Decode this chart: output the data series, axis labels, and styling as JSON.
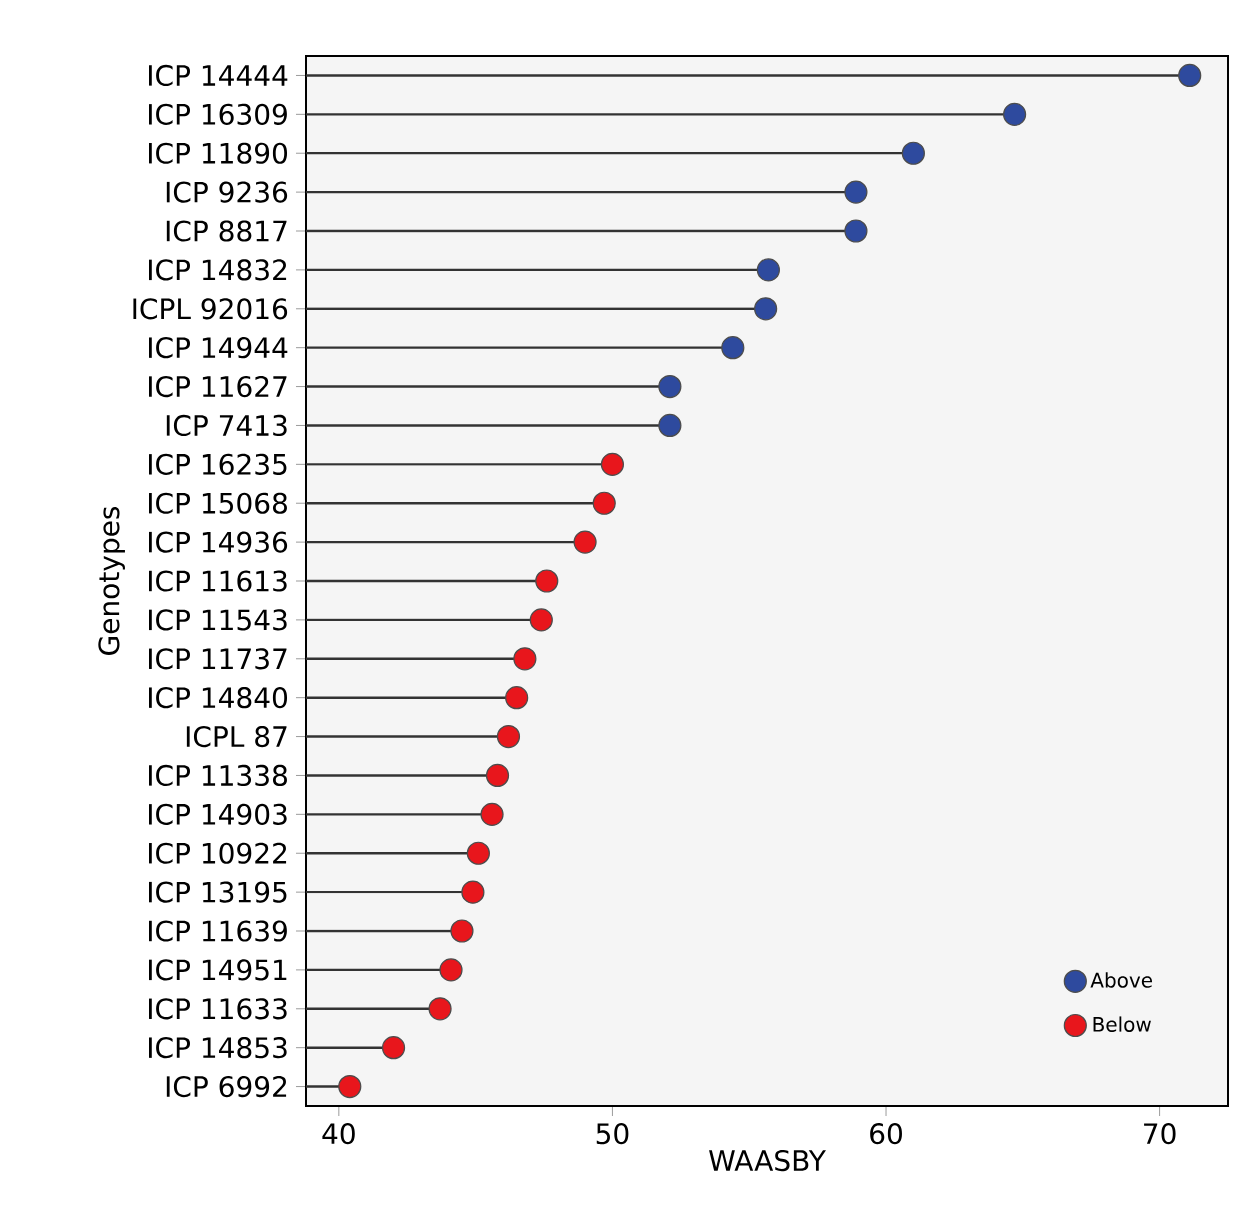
{
  "chart_data": {
    "type": "lollipop",
    "xlabel": "WAASBY",
    "ylabel": "Genotypes",
    "categories": [
      "ICP 14444",
      "ICP 16309",
      "ICP 11890",
      "ICP 9236",
      "ICP 8817",
      "ICP 14832",
      "ICPL 92016",
      "ICP 14944",
      "ICP 11627",
      "ICP 7413",
      "ICP 16235",
      "ICP 15068",
      "ICP 14936",
      "ICP 11613",
      "ICP 11543",
      "ICP 11737",
      "ICP 14840",
      "ICPL 87",
      "ICP 11338",
      "ICP 14903",
      "ICP 10922",
      "ICP 13195",
      "ICP 11639",
      "ICP 14951",
      "ICP 11633",
      "ICP 14853",
      "ICP 6992"
    ],
    "orientation": "horizontal",
    "marker": "circle",
    "legend": "bottom right",
    "grid": false,
    "xlim": [
      38.8,
      72.5
    ],
    "xticks": [
      40,
      50,
      60,
      70
    ],
    "series": [
      {
        "name": "Above",
        "color": "#2e4a9e",
        "values": [
          71.1,
          64.7,
          61.0,
          58.9,
          58.9,
          55.7,
          55.6,
          54.4,
          52.1,
          52.1,
          null,
          null,
          null,
          null,
          null,
          null,
          null,
          null,
          null,
          null,
          null,
          null,
          null,
          null,
          null,
          null,
          null
        ]
      },
      {
        "name": "Below",
        "color": "#e8161c",
        "values": [
          null,
          null,
          null,
          null,
          null,
          null,
          null,
          null,
          null,
          null,
          50.0,
          49.7,
          49.0,
          47.6,
          47.4,
          46.8,
          46.5,
          46.2,
          45.8,
          45.6,
          45.1,
          44.9,
          44.5,
          44.1,
          43.7,
          42.0,
          40.4
        ]
      }
    ]
  }
}
